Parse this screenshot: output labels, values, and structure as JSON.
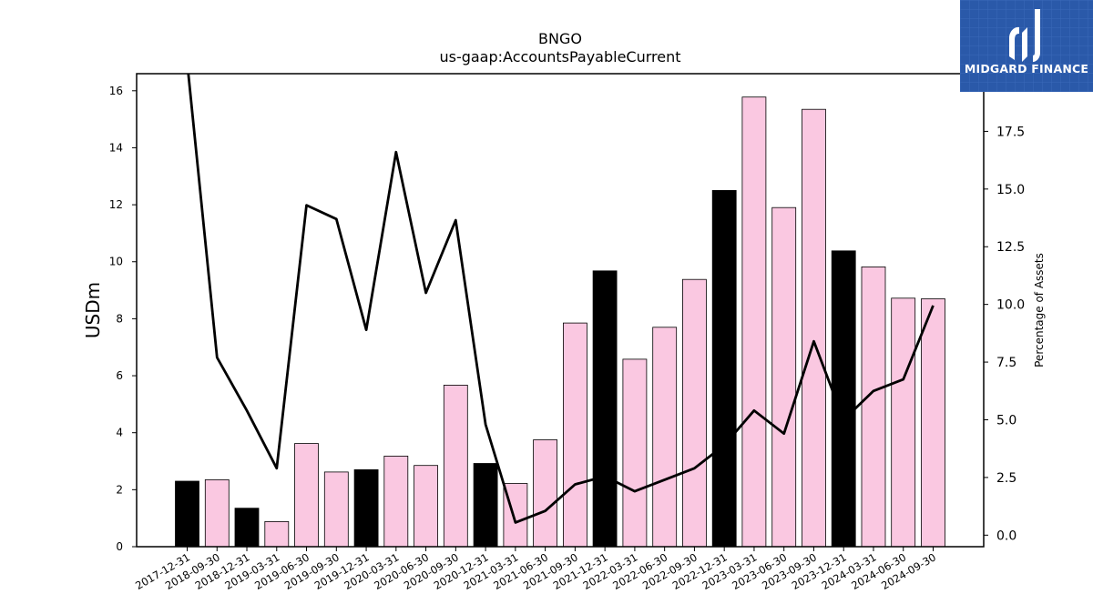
{
  "chart_data": {
    "type": "bar",
    "title": "BNGO",
    "subtitle": "us-gaap:AccountsPayableCurrent",
    "ylabel": "USDm",
    "ylabel_right": "Percentage of Assets",
    "ylim": [
      0,
      16.6
    ],
    "ylim_right": [
      -0.5,
      20.0
    ],
    "yticks": [
      "0",
      "2",
      "4",
      "6",
      "8",
      "10",
      "12",
      "14",
      "16"
    ],
    "yticks_right": [
      "0.0",
      "2.5",
      "5.0",
      "7.5",
      "10.0",
      "12.5",
      "15.0",
      "17.5"
    ],
    "categories": [
      "2017-12-31",
      "2018-09-30",
      "2018-12-31",
      "2019-03-31",
      "2019-06-30",
      "2019-09-30",
      "2019-12-31",
      "2020-03-31",
      "2020-06-30",
      "2020-09-30",
      "2020-12-31",
      "2021-03-31",
      "2021-06-30",
      "2021-09-30",
      "2021-12-31",
      "2022-03-31",
      "2022-06-30",
      "2022-09-30",
      "2022-12-31",
      "2023-03-31",
      "2023-06-30",
      "2023-09-30",
      "2023-12-31",
      "2024-03-31",
      "2024-06-30",
      "2024-09-30"
    ],
    "series": [
      {
        "type": "bar",
        "axis": "left",
        "values": [
          2.3,
          2.35,
          1.35,
          0.88,
          3.62,
          2.62,
          2.7,
          3.18,
          2.85,
          5.67,
          2.92,
          2.22,
          3.75,
          7.85,
          9.68,
          6.58,
          7.7,
          9.38,
          12.5,
          15.78,
          11.9,
          15.35,
          10.38,
          9.82,
          8.72,
          8.7
        ],
        "colors": [
          "#000000",
          "#fac8e1",
          "#000000",
          "#fac8e1",
          "#fac8e1",
          "#fac8e1",
          "#000000",
          "#fac8e1",
          "#fac8e1",
          "#fac8e1",
          "#000000",
          "#fac8e1",
          "#fac8e1",
          "#fac8e1",
          "#000000",
          "#fac8e1",
          "#fac8e1",
          "#fac8e1",
          "#000000",
          "#fac8e1",
          "#fac8e1",
          "#fac8e1",
          "#000000",
          "#fac8e1",
          "#fac8e1",
          "#fac8e1"
        ]
      },
      {
        "type": "line",
        "axis": "right",
        "values": [
          20.5,
          7.7,
          5.4,
          2.9,
          14.3,
          13.7,
          8.9,
          16.6,
          10.5,
          13.65,
          4.8,
          0.55,
          1.05,
          2.2,
          2.55,
          1.9,
          2.4,
          2.9,
          3.9,
          5.4,
          4.4,
          8.4,
          5.0,
          6.25,
          6.75,
          9.95
        ],
        "color": "#000000"
      }
    ],
    "grid": false,
    "legend": "none"
  },
  "logo": {
    "text": "MIDGARD FINANCE",
    "background": "#2a59a9",
    "icon": "midgard-logo-icon"
  }
}
